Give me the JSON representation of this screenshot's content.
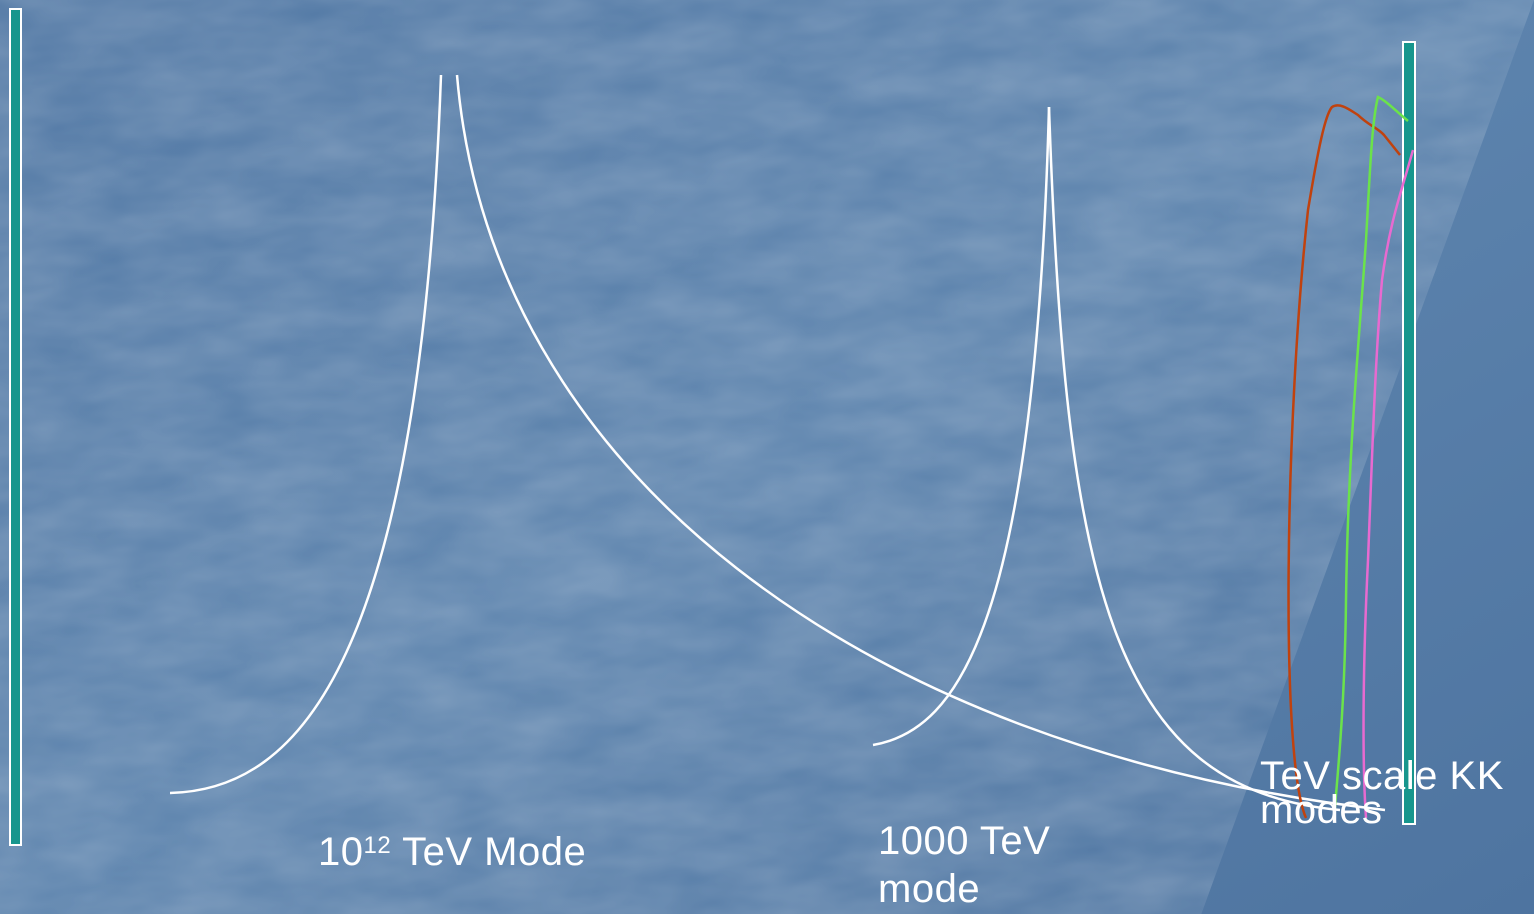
{
  "colors": {
    "background": "#5a7fa8",
    "brane": "#17968d",
    "brane_outline": "#ffffff",
    "white_curves": "#ffffff",
    "red_curve": "#c0420e",
    "green_curve": "#6be34a",
    "pink_curve": "#e86ad0",
    "text": "#ffffff"
  },
  "labels": {
    "mode_1012_base": "10",
    "mode_1012_exp": "12",
    "mode_1012_rest": " TeV Mode",
    "mode_1000_line1": "1000 TeV",
    "mode_1000_line2": "mode",
    "tev_kk_line1": "TeV scale KK",
    "tev_kk_line2": "modes"
  }
}
